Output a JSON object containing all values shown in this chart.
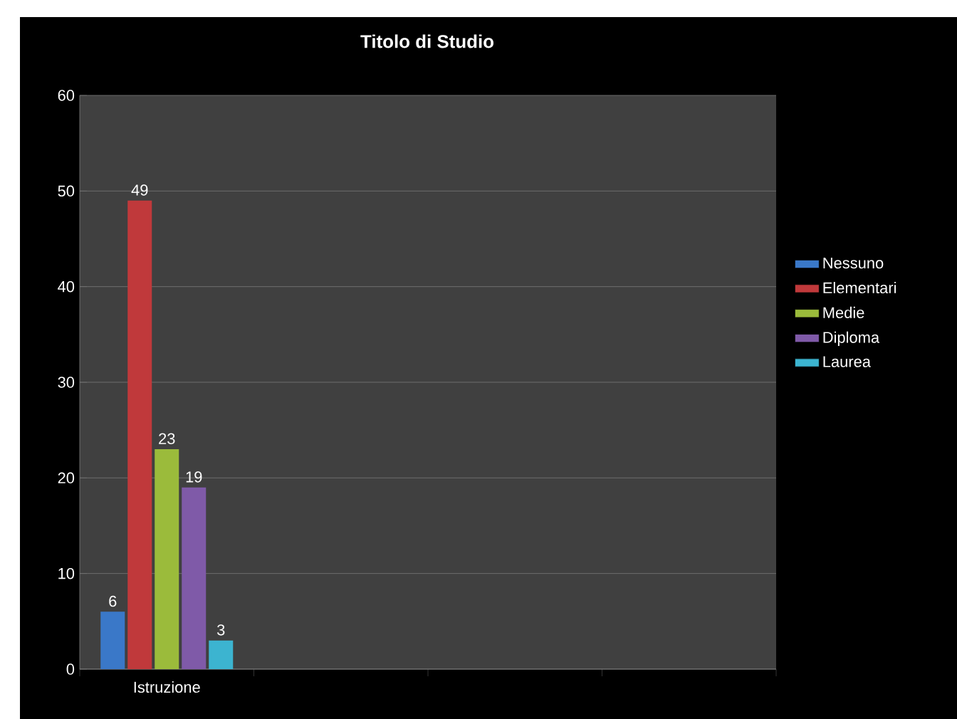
{
  "chart_data": {
    "type": "bar",
    "title": "Titolo di Studio",
    "categories": [
      "Istruzione",
      null,
      null,
      null
    ],
    "series": [
      {
        "name": "Nessuno",
        "color": "#3a78c8",
        "values": [
          6,
          null,
          null,
          null
        ]
      },
      {
        "name": "Elementari",
        "color": "#c0393b",
        "values": [
          49,
          null,
          null,
          null
        ]
      },
      {
        "name": "Medie",
        "color": "#9bbb3b",
        "values": [
          23,
          null,
          null,
          null
        ]
      },
      {
        "name": "Diploma",
        "color": "#7f5aa8",
        "values": [
          19,
          null,
          null,
          null
        ]
      },
      {
        "name": "Laurea",
        "color": "#3cb4d0",
        "values": [
          3,
          null,
          null,
          null
        ]
      }
    ],
    "ylim": [
      0,
      60
    ],
    "yticks": [
      0,
      10,
      20,
      30,
      40,
      50,
      60
    ],
    "grid": "y",
    "legend": "right",
    "data_labels": true
  }
}
